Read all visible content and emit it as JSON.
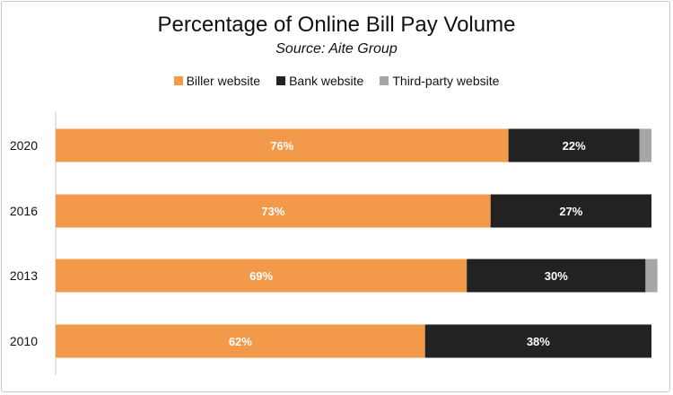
{
  "chart_data": {
    "type": "bar",
    "orientation": "horizontal",
    "stacked": true,
    "title": "Percentage of Online Bill Pay Volume",
    "subtitle": "Source: Aite Group",
    "categories": [
      "2020",
      "2016",
      "2013",
      "2010"
    ],
    "series": [
      {
        "name": "Biller website",
        "color": "#f2994a",
        "values": [
          76,
          73,
          69,
          62
        ],
        "labels": [
          "76%",
          "73%",
          "69%",
          "62%"
        ]
      },
      {
        "name": "Bank website",
        "color": "#222222",
        "values": [
          22,
          27,
          30,
          38
        ],
        "labels": [
          "22%",
          "27%",
          "30%",
          "38%"
        ]
      },
      {
        "name": "Third-party website",
        "color": "#a6a6a6",
        "values": [
          2,
          0,
          2,
          0
        ],
        "labels": [
          "",
          "",
          "",
          ""
        ]
      }
    ],
    "xlim": [
      0,
      100
    ],
    "legend_position": "top",
    "grid": false
  }
}
